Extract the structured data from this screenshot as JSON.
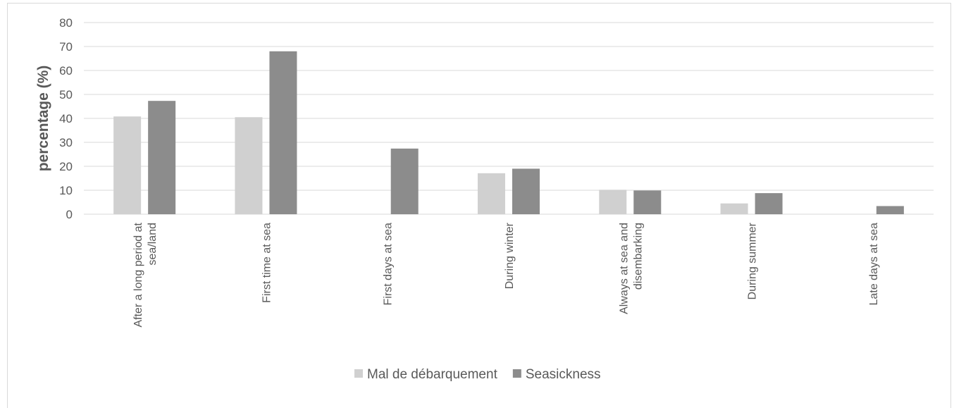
{
  "chart_data": {
    "type": "bar",
    "categories": [
      [
        "After a long period at",
        "sea/land"
      ],
      [
        "First time at sea"
      ],
      [
        "First days at sea"
      ],
      [
        "During winter"
      ],
      [
        "Always at sea and",
        "disembarking"
      ],
      [
        "During summer"
      ],
      [
        "Late days at sea"
      ]
    ],
    "series": [
      {
        "name": "Mal de débarquement",
        "color": "#d0d0d0",
        "values": [
          40.8,
          40.5,
          0,
          17.1,
          10.2,
          4.5,
          0
        ]
      },
      {
        "name": "Seasickness",
        "color": "#8c8c8c",
        "values": [
          47.3,
          68.0,
          27.4,
          19.0,
          9.9,
          8.8,
          3.4
        ]
      }
    ],
    "title": "",
    "xlabel": "",
    "ylabel": "percentage (%)",
    "ylim": [
      0,
      80
    ],
    "yticks": [
      "0",
      "10",
      "20",
      "30",
      "40",
      "50",
      "60",
      "70",
      "80"
    ],
    "grid": true,
    "legend_position": "bottom"
  }
}
